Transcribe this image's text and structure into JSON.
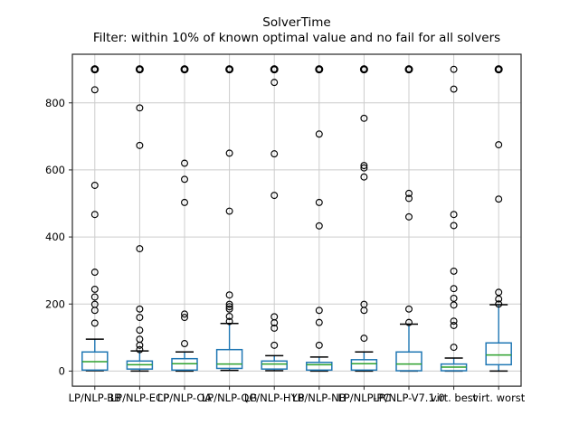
{
  "chart_data": {
    "type": "boxplot",
    "title": "SolverTime",
    "subtitle": "Filter: within 10% of known optimal value and no fail for all solvers",
    "ylabel": "",
    "xlabel": "",
    "ylim": [
      -45,
      945
    ],
    "yticks": [
      0,
      200,
      400,
      600,
      800
    ],
    "grid": true,
    "legend": "none",
    "timelimit_value": 900,
    "categories": [
      "LP/NLP-BB",
      "LP/NLP-ECP",
      "LP/NLP-OA",
      "LP/NLP-QG",
      "LP/NLP-HYB",
      "LP/NLP-NB",
      "LP/NLP-PC",
      "LP/NLP-V7.1.0",
      "virt. best",
      "virt. worst"
    ],
    "series": [
      {
        "label": "LP/NLP-BB",
        "whislo": 1,
        "q1": 3,
        "med": 28,
        "q3": 57,
        "whishi": 95,
        "fliers": [
          143,
          181,
          199,
          221,
          244,
          295,
          467,
          554,
          839,
          900,
          900,
          900
        ]
      },
      {
        "label": "LP/NLP-ECP",
        "whislo": 0,
        "q1": 6,
        "med": 19,
        "q3": 30,
        "whishi": 60,
        "fliers": [
          64,
          77,
          95,
          122,
          160,
          185,
          365,
          673,
          785,
          900,
          900,
          900
        ]
      },
      {
        "label": "LP/NLP-OA",
        "whislo": 0,
        "q1": 3,
        "med": 22,
        "q3": 37,
        "whishi": 57,
        "fliers": [
          82,
          160,
          170,
          503,
          572,
          620,
          900,
          900,
          900
        ]
      },
      {
        "label": "LP/NLP-QG",
        "whislo": 2,
        "q1": 8,
        "med": 21,
        "q3": 64,
        "whishi": 142,
        "fliers": [
          148,
          163,
          185,
          192,
          199,
          227,
          477,
          650,
          900,
          900,
          900
        ]
      },
      {
        "label": "LP/NLP-HYB",
        "whislo": 1,
        "q1": 6,
        "med": 21,
        "q3": 30,
        "whishi": 46,
        "fliers": [
          77,
          128,
          144,
          162,
          524,
          648,
          861,
          900,
          900,
          900
        ]
      },
      {
        "label": "LP/NLP-NB",
        "whislo": 0,
        "q1": 3,
        "med": 19,
        "q3": 26,
        "whishi": 42,
        "fliers": [
          77,
          145,
          181,
          433,
          503,
          707,
          900,
          900,
          900
        ]
      },
      {
        "label": "LP/NLP-PC",
        "whislo": 0,
        "q1": 3,
        "med": 22,
        "q3": 34,
        "whishi": 57,
        "fliers": [
          98,
          181,
          199,
          579,
          606,
          613,
          754,
          900,
          900,
          900
        ]
      },
      {
        "label": "LP/NLP-V7.1.0",
        "whislo": 0,
        "q1": 1,
        "med": 21,
        "q3": 57,
        "whishi": 140,
        "fliers": [
          145,
          185,
          460,
          515,
          530,
          900,
          900,
          900
        ]
      },
      {
        "label": "virt. best",
        "whislo": 0,
        "q1": 1,
        "med": 12,
        "q3": 21,
        "whishi": 39,
        "fliers": [
          71,
          136,
          149,
          197,
          217,
          246,
          298,
          434,
          467,
          841,
          900
        ]
      },
      {
        "label": "virt. worst",
        "whislo": 0,
        "q1": 19,
        "med": 48,
        "q3": 84,
        "whishi": 198,
        "fliers": [
          200,
          215,
          235,
          513,
          675,
          900,
          900,
          900
        ]
      }
    ],
    "colors": {
      "box": "#1f77b4",
      "median": "#2ca02c",
      "whisker": "#1f77b4",
      "caps": "#000000",
      "fliers": "#000000",
      "grid": "#cccccc",
      "spine": "#262626",
      "text": "#000000",
      "background": "#ffffff"
    }
  }
}
